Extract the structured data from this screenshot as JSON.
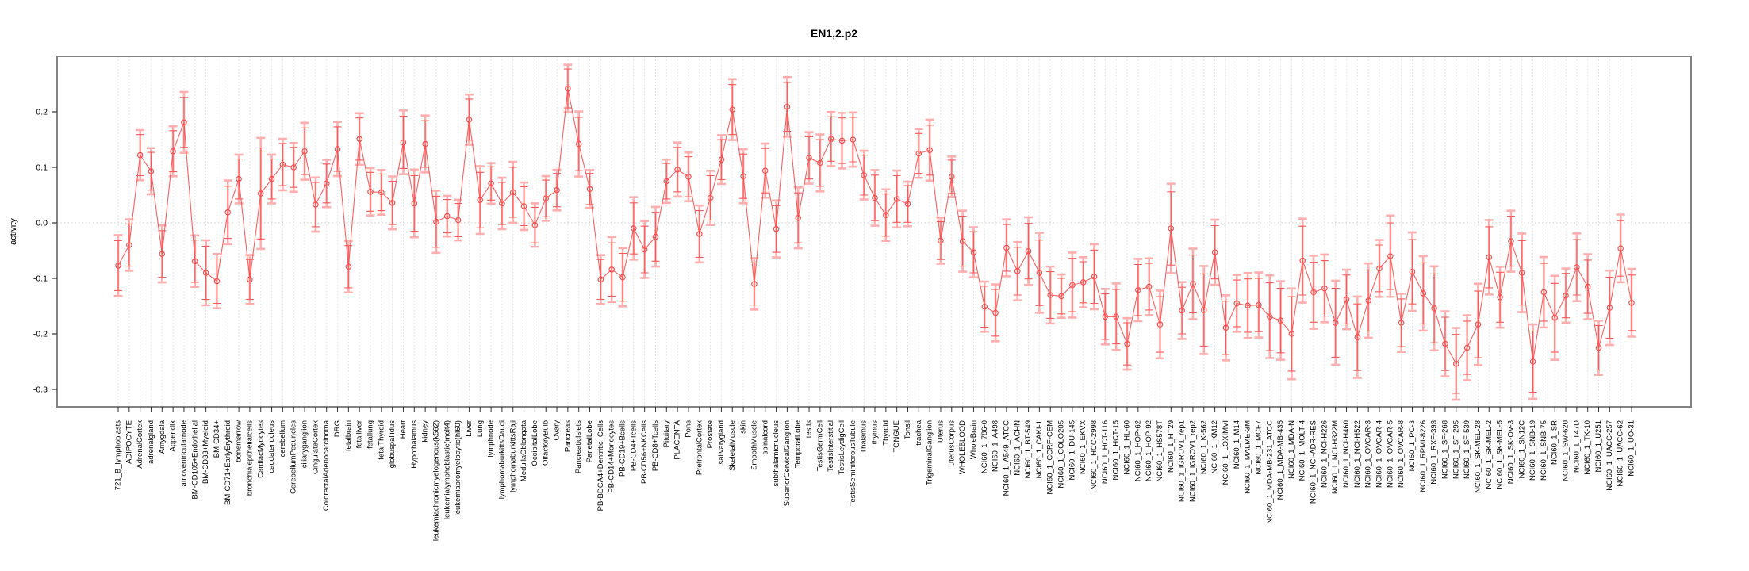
{
  "chart_data": {
    "type": "line",
    "title": "EN1,2.p2",
    "ylabel": "activity",
    "xlabel": "",
    "ylim": [
      -0.33,
      0.3
    ],
    "yticks": [
      0.2,
      0.1,
      0.0,
      -0.1,
      -0.2,
      -0.3
    ],
    "grid": "vertical dotted gridline at every category; dotted horizontal line at 0",
    "legend_position": "none",
    "marker": "open-circle",
    "colors": {
      "line": "#fb4f4f",
      "point": "#fb4f4f",
      "error_bar": "#fb5a5a",
      "error_bar_outer": "#ffafaf",
      "grid": "#e0e0e0",
      "zero_line": "#cdcdcd",
      "box": "#828282",
      "tick": "#333333",
      "text": "#000000"
    },
    "categories": [
      "721_B_lymphoblasts",
      "ADIPOCYTE",
      "AdrenalCortex",
      "adrenalgland",
      "Amygdala",
      "Appendix",
      "atrioventricularnode",
      "BM-CD105+Endothelial",
      "BM-CD33+Myeloid",
      "BM-CD34+",
      "BM-CD71+EarlyErythroid",
      "bonemarrow",
      "bronchialepithelialcells",
      "CardiacMyocytes",
      "caudatenucleus",
      "cerebellum",
      "CerebellumPeduncles",
      "ciliaryganglion",
      "CingulateCortex",
      "ColorectalAdenocarcinoma",
      "DRG",
      "fetalbrain",
      "fetalliver",
      "fetallung",
      "fetalThyroid",
      "globuspallidus",
      "Heart",
      "Hypothalamus",
      "kidney",
      "leukemiachronicmyelogenous(k562)",
      "leukemialymphoblastic(molt4)",
      "leukemiapromyelocytic(hl60)",
      "Liver",
      "Lung",
      "lymphnode",
      "lymphomaburkittsDaudi",
      "lymphomaburkittsRaji",
      "MedullaOblongata",
      "OccipitalLobe",
      "OlfactoryBulb",
      "Ovary",
      "Pancreas",
      "PancreaticIslets",
      "ParietalLobe",
      "PB-BDCA4+Dentritic_Cells",
      "PB-CD14+Monocytes",
      "PB-CD19+Bcells",
      "PB-CD4+Tcells",
      "PB-CD56+NKCells",
      "PB-CD8+Tcells",
      "Pituitary",
      "PLACENTA",
      "Pons",
      "PrefrontalCortex",
      "Prostate",
      "salivarygland",
      "SkeletalMuscle",
      "skin",
      "SmoothMuscle",
      "spinalcord",
      "subthalamicnucleus",
      "SuperiorCervicalGanglion",
      "TemporalLobe",
      "testis",
      "TestisGermCell",
      "TestisInterstitial",
      "TestisLeydigCell",
      "TestisSeminiferousTubule",
      "Thalamus",
      "thymus",
      "Thyroid",
      "TONGUE",
      "Tonsil",
      "trachea",
      "TrigeminalGanglion",
      "Uterus",
      "UterusCorpus",
      "WHOLEBLOOD",
      "WholeBrain",
      "NCI60_1_786-0",
      "NCI60_1_A498",
      "NCI60_1_A549_ATCC",
      "NCI60_1_ACHN",
      "NCI60_1_BT-549",
      "NCI60_1_CAKI-1",
      "NCI60_1_CCRF-CEM",
      "NCI60_1_COLO205",
      "NCI60_1_DU-145",
      "NCI60_1_EKVX",
      "NCI60_1_HCC-2998",
      "NCI60_1_HCT-116",
      "NCI60_1_HCT-15",
      "NCI60_1_HL-60",
      "NCI60_1_HOP-62",
      "NCI60_1_HOP-92",
      "NCI60_1_HS578T",
      "NCI60_1_HT29",
      "NCI60_1_IGROV1_rep1",
      "NCI60_1_IGROV1_rep2",
      "NCI60_1_K-562",
      "NCI60_1_KM12",
      "NCI60_1_LOXIMVI",
      "NCI60_1_M14",
      "NCI60_1_MALME-3M",
      "NCI60_1_MCF7",
      "NCI60_1_MDA-MB-231_ATCC",
      "NCI60_1_MDA-MB-435",
      "NCI60_1_MDA-N",
      "NCI60_1_MOLT-4",
      "NCI60_1_NCI-ADR-RES",
      "NCI60_1_NCI-H226",
      "NCI60_1_NCI-H322M",
      "NCI60_1_NCI-H460",
      "NCI60_1_NCI-H522",
      "NCI60_1_OVCAR-3",
      "NCI60_1_OVCAR-4",
      "NCI60_1_OVCAR-5",
      "NCI60_1_OVCAR-8",
      "NCI60_1_PC-3",
      "NCI60_1_RPMI-8226",
      "NCI60_1_RXF-393",
      "NCI60_1_SF-268",
      "NCI60_1_SF-295",
      "NCI60_1_SF-539",
      "NCI60_1_SK-MEL-28",
      "NCI60_1_SK-MEL-2",
      "NCI60_1_SK-MEL-5",
      "NCI60_1_SK-OV-3",
      "NCI60_1_SN12C",
      "NCI60_1_SNB-19",
      "NCI60_1_SNB-75",
      "NCI60_1_SR",
      "NCI60_1_SW-620",
      "NCI60_1_T47D",
      "NCI60_1_TK-10",
      "NCI60_1_U251",
      "NCI60_1_UACC-257",
      "NCI60_1_UACC-62",
      "NCI60_1_UO-31"
    ],
    "values": [
      -0.077,
      -0.04,
      0.122,
      0.093,
      -0.056,
      0.129,
      0.181,
      -0.069,
      -0.09,
      -0.105,
      0.019,
      0.079,
      -0.102,
      0.053,
      0.079,
      0.105,
      0.1,
      0.129,
      0.033,
      0.071,
      0.133,
      -0.079,
      0.151,
      0.056,
      0.055,
      0.036,
      0.145,
      0.035,
      0.142,
      0.002,
      0.012,
      0.005,
      0.186,
      0.041,
      0.071,
      0.035,
      0.055,
      0.03,
      -0.004,
      0.044,
      0.059,
      0.242,
      0.142,
      0.061,
      -0.102,
      -0.084,
      -0.098,
      -0.01,
      -0.048,
      -0.025,
      0.075,
      0.096,
      0.083,
      -0.02,
      0.045,
      0.114,
      0.204,
      0.084,
      -0.11,
      0.094,
      -0.011,
      0.209,
      0.009,
      0.117,
      0.108,
      0.151,
      0.148,
      0.15,
      0.086,
      0.045,
      0.014,
      0.043,
      0.034,
      0.125,
      0.131,
      -0.032,
      0.083,
      -0.033,
      -0.053,
      -0.151,
      -0.162,
      -0.045,
      -0.087,
      -0.051,
      -0.09,
      -0.13,
      -0.132,
      -0.112,
      -0.107,
      -0.097,
      -0.169,
      -0.169,
      -0.218,
      -0.121,
      -0.115,
      -0.183,
      -0.01,
      -0.158,
      -0.11,
      -0.157,
      -0.053,
      -0.189,
      -0.145,
      -0.149,
      -0.148,
      -0.169,
      -0.176,
      -0.2,
      -0.068,
      -0.125,
      -0.118,
      -0.18,
      -0.138,
      -0.206,
      -0.14,
      -0.082,
      -0.06,
      -0.18,
      -0.088,
      -0.127,
      -0.154,
      -0.218,
      -0.254,
      -0.225,
      -0.183,
      -0.062,
      -0.134,
      -0.033,
      -0.09,
      -0.25,
      -0.125,
      -0.171,
      -0.131,
      -0.08,
      -0.115,
      -0.225,
      -0.153,
      -0.046,
      -0.144
    ],
    "errors": [
      0.045,
      0.038,
      0.037,
      0.034,
      0.042,
      0.037,
      0.045,
      0.038,
      0.048,
      0.04,
      0.047,
      0.036,
      0.036,
      0.082,
      0.036,
      0.038,
      0.036,
      0.042,
      0.04,
      0.035,
      0.04,
      0.038,
      0.038,
      0.035,
      0.033,
      0.039,
      0.047,
      0.05,
      0.042,
      0.046,
      0.03,
      0.03,
      0.037,
      0.05,
      0.03,
      0.038,
      0.045,
      0.035,
      0.032,
      0.033,
      0.03,
      0.035,
      0.048,
      0.028,
      0.036,
      0.048,
      0.043,
      0.046,
      0.042,
      0.044,
      0.032,
      0.04,
      0.036,
      0.042,
      0.04,
      0.036,
      0.045,
      0.04,
      0.038,
      0.04,
      0.042,
      0.044,
      0.045,
      0.038,
      0.042,
      0.04,
      0.041,
      0.04,
      0.036,
      0.041,
      0.038,
      0.042,
      0.033,
      0.036,
      0.045,
      0.034,
      0.03,
      0.045,
      0.037,
      0.037,
      0.042,
      0.042,
      0.043,
      0.05,
      0.059,
      0.042,
      0.032,
      0.048,
      0.037,
      0.048,
      0.041,
      0.049,
      0.038,
      0.046,
      0.042,
      0.05,
      0.066,
      0.042,
      0.052,
      0.065,
      0.048,
      0.048,
      0.042,
      0.048,
      0.048,
      0.061,
      0.058,
      0.067,
      0.062,
      0.054,
      0.05,
      0.062,
      0.044,
      0.06,
      0.055,
      0.042,
      0.06,
      0.043,
      0.058,
      0.055,
      0.062,
      0.048,
      0.053,
      0.048,
      0.06,
      0.055,
      0.045,
      0.045,
      0.058,
      0.055,
      0.052,
      0.062,
      0.04,
      0.05,
      0.048,
      0.04,
      0.055,
      0.05,
      0.05
    ]
  }
}
